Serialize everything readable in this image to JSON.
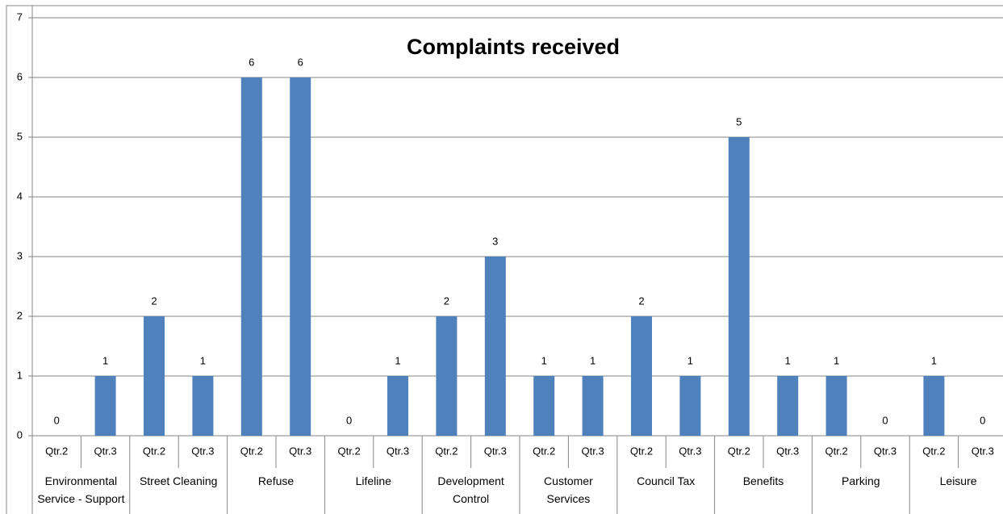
{
  "chart_data": {
    "type": "bar",
    "title": "Complaints received",
    "categories": [
      "Qtr.2",
      "Qtr.3",
      "Qtr.2",
      "Qtr.3",
      "Qtr.2",
      "Qtr.3",
      "Qtr.2",
      "Qtr.3",
      "Qtr.2",
      "Qtr.3",
      "Qtr.2",
      "Qtr.3",
      "Qtr.2",
      "Qtr.3",
      "Qtr.2",
      "Qtr.3",
      "Qtr.2",
      "Qtr.3",
      "Qtr.2",
      "Qtr.3"
    ],
    "groups": [
      "Environmental Service - Support",
      "Street Cleaning",
      "Refuse",
      "Lifeline",
      "Development Control",
      "Customer Services",
      "Council Tax",
      "Benefits",
      "Parking",
      "Leisure"
    ],
    "values": [
      0,
      1,
      2,
      1,
      6,
      6,
      0,
      1,
      2,
      3,
      1,
      1,
      2,
      1,
      5,
      1,
      1,
      0,
      1,
      0
    ],
    "color": "#4f81bd",
    "ylim": [
      0,
      7
    ],
    "yticks": [
      0,
      1,
      2,
      3,
      4,
      5,
      6,
      7
    ],
    "grid": true
  }
}
